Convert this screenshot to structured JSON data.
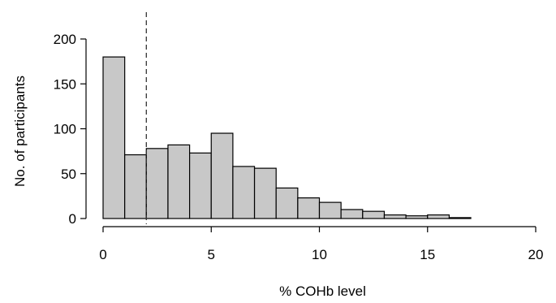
{
  "chart_data": {
    "type": "bar",
    "subtype": "histogram",
    "xlabel": "% COHb level",
    "ylabel": "No. of participants",
    "xlim": [
      0,
      20
    ],
    "ylim": [
      0,
      200
    ],
    "xticks": [
      0,
      5,
      10,
      15,
      20
    ],
    "yticks": [
      0,
      50,
      100,
      150,
      200
    ],
    "bin_width": 1,
    "bins": [
      {
        "start": 0,
        "end": 1,
        "count": 180
      },
      {
        "start": 1,
        "end": 2,
        "count": 71
      },
      {
        "start": 2,
        "end": 3,
        "count": 78
      },
      {
        "start": 3,
        "end": 4,
        "count": 82
      },
      {
        "start": 4,
        "end": 5,
        "count": 73
      },
      {
        "start": 5,
        "end": 6,
        "count": 95
      },
      {
        "start": 6,
        "end": 7,
        "count": 58
      },
      {
        "start": 7,
        "end": 8,
        "count": 56
      },
      {
        "start": 8,
        "end": 9,
        "count": 34
      },
      {
        "start": 9,
        "end": 10,
        "count": 23
      },
      {
        "start": 10,
        "end": 11,
        "count": 18
      },
      {
        "start": 11,
        "end": 12,
        "count": 10
      },
      {
        "start": 12,
        "end": 13,
        "count": 8
      },
      {
        "start": 13,
        "end": 14,
        "count": 4
      },
      {
        "start": 14,
        "end": 15,
        "count": 3
      },
      {
        "start": 15,
        "end": 16,
        "count": 4
      },
      {
        "start": 16,
        "end": 17,
        "count": 1
      }
    ],
    "reference_line": {
      "x": 2,
      "style": "dashed"
    },
    "bar_fill": "#c8c8c8",
    "bar_stroke": "#000000",
    "grid": false,
    "legend": "none"
  }
}
